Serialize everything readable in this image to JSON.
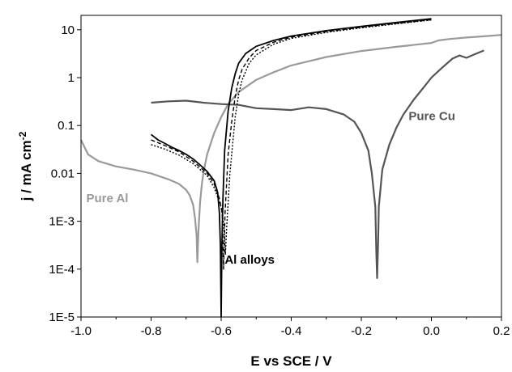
{
  "chart_data": {
    "type": "line",
    "title": "",
    "xlabel": "E vs SCE / V",
    "ylabel": "j / mA cm",
    "ylabel_superscript": "-2",
    "xlim": [
      -1.0,
      0.2
    ],
    "ylim": [
      1e-05,
      20
    ],
    "ylog": true,
    "grid": false,
    "x_ticks": [
      -1.0,
      -0.8,
      -0.6,
      -0.4,
      -0.2,
      0.0,
      0.2
    ],
    "x_tick_labels": [
      "-1.0",
      "-0.8",
      "-0.6",
      "-0.4",
      "-0.2",
      "0.0",
      "0.2"
    ],
    "y_ticks": [
      1e-05,
      0.0001,
      0.001,
      0.01,
      0.1,
      1,
      10
    ],
    "y_tick_labels": [
      "1E-5",
      "1E-4",
      "1E-3",
      "0.01",
      "0.1",
      "1",
      "10"
    ],
    "annotations": [
      {
        "text": "Pure Al",
        "x": -0.985,
        "y": 0.0025,
        "color": "#9a9a9a"
      },
      {
        "text": "Pure Cu",
        "x": -0.065,
        "y": 0.13,
        "color": "#555555"
      },
      {
        "text": "Al alloys",
        "x": -0.59,
        "y": 0.00013,
        "color": "#000000"
      }
    ],
    "series": [
      {
        "color": "#9a9a9a",
        "dash": "",
        "width": 2.2,
        "x": [
          -1.0,
          -0.98,
          -0.95,
          -0.9,
          -0.85,
          -0.8,
          -0.75,
          -0.72,
          -0.7,
          -0.69,
          -0.68,
          -0.675,
          -0.67,
          -0.668,
          -0.665,
          -0.66,
          -0.655,
          -0.65,
          -0.64,
          -0.62,
          -0.6,
          -0.58,
          -0.55,
          -0.5,
          -0.45,
          -0.4,
          -0.3,
          -0.2,
          -0.1,
          0.0,
          0.02,
          0.05,
          0.1,
          0.15,
          0.2
        ],
        "y": [
          0.05,
          0.025,
          0.018,
          0.014,
          0.012,
          0.01,
          0.0075,
          0.006,
          0.0045,
          0.0035,
          0.0022,
          0.0012,
          0.0005,
          0.00014,
          0.0006,
          0.0025,
          0.006,
          0.011,
          0.025,
          0.07,
          0.15,
          0.28,
          0.5,
          0.9,
          1.3,
          1.8,
          2.7,
          3.6,
          4.4,
          5.3,
          6.0,
          6.4,
          6.9,
          7.3,
          7.8
        ]
      },
      {
        "color": "#555555",
        "dash": "",
        "width": 2.2,
        "x": [
          -0.8,
          -0.75,
          -0.7,
          -0.65,
          -0.6,
          -0.55,
          -0.5,
          -0.45,
          -0.4,
          -0.35,
          -0.3,
          -0.25,
          -0.22,
          -0.2,
          -0.18,
          -0.17,
          -0.16,
          -0.157,
          -0.155,
          -0.152,
          -0.15,
          -0.14,
          -0.12,
          -0.1,
          -0.08,
          -0.05,
          -0.02,
          0.0,
          0.03,
          0.06,
          0.08,
          0.1,
          0.12,
          0.15
        ],
        "y": [
          0.3,
          0.32,
          0.33,
          0.3,
          0.28,
          0.27,
          0.23,
          0.22,
          0.21,
          0.24,
          0.22,
          0.17,
          0.12,
          0.07,
          0.03,
          0.01,
          0.002,
          0.0002,
          6.5e-05,
          0.0004,
          0.002,
          0.012,
          0.04,
          0.09,
          0.17,
          0.35,
          0.65,
          1.0,
          1.6,
          2.5,
          2.9,
          2.6,
          3.0,
          3.7
        ]
      },
      {
        "color": "#000000",
        "dash": "",
        "width": 1.8,
        "x": [
          -0.8,
          -0.78,
          -0.76,
          -0.74,
          -0.72,
          -0.7,
          -0.68,
          -0.66,
          -0.64,
          -0.62,
          -0.61,
          -0.605,
          -0.602,
          -0.6,
          -0.598,
          -0.595,
          -0.59,
          -0.58,
          -0.57,
          -0.56,
          -0.55,
          -0.53,
          -0.5,
          -0.45,
          -0.4,
          -0.3,
          -0.2,
          -0.1,
          0.0
        ],
        "y": [
          0.065,
          0.05,
          0.042,
          0.035,
          0.03,
          0.025,
          0.02,
          0.015,
          0.011,
          0.007,
          0.004,
          0.0015,
          0.0003,
          1e-05,
          0.0003,
          0.003,
          0.03,
          0.2,
          0.6,
          1.2,
          2.0,
          3.2,
          4.5,
          6.0,
          7.4,
          9.6,
          11.8,
          14.2,
          17.0
        ]
      },
      {
        "color": "#000000",
        "dash": "5,3",
        "width": 1.4,
        "x": [
          -0.8,
          -0.76,
          -0.72,
          -0.68,
          -0.64,
          -0.62,
          -0.605,
          -0.597,
          -0.593,
          -0.589,
          -0.58,
          -0.57,
          -0.56,
          -0.55,
          -0.54,
          -0.52,
          -0.5,
          -0.45,
          -0.4,
          -0.3,
          -0.2,
          -0.1,
          0.0
        ],
        "y": [
          0.05,
          0.038,
          0.028,
          0.018,
          0.01,
          0.006,
          0.003,
          0.0015,
          0.0001,
          0.0015,
          0.025,
          0.12,
          0.4,
          0.9,
          1.5,
          2.6,
          3.7,
          5.5,
          7.0,
          9.2,
          11.3,
          13.6,
          16.2
        ]
      },
      {
        "color": "#000000",
        "dash": "2,2",
        "width": 1.4,
        "x": [
          -0.8,
          -0.76,
          -0.72,
          -0.68,
          -0.64,
          -0.62,
          -0.6,
          -0.592,
          -0.588,
          -0.584,
          -0.575,
          -0.56,
          -0.55,
          -0.54,
          -0.52,
          -0.5,
          -0.45,
          -0.4,
          -0.3,
          -0.2,
          -0.1,
          0.0
        ],
        "y": [
          0.04,
          0.032,
          0.024,
          0.016,
          0.009,
          0.005,
          0.002,
          0.0008,
          0.0002,
          0.0008,
          0.01,
          0.15,
          0.45,
          0.9,
          2.0,
          3.0,
          5.0,
          6.6,
          8.8,
          11.0,
          13.3,
          16.0
        ]
      }
    ]
  }
}
